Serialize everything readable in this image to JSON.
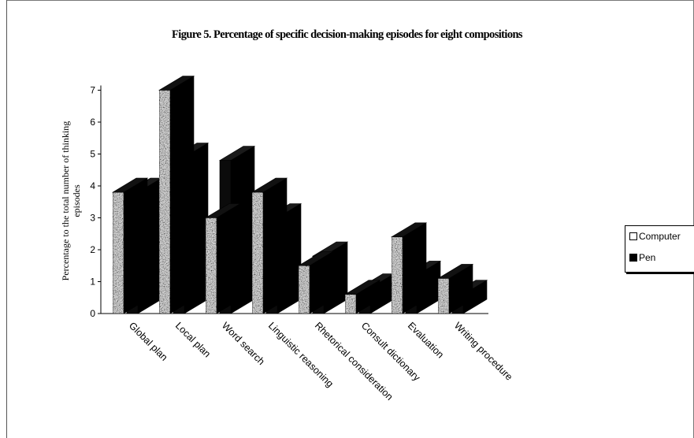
{
  "chart_data": {
    "type": "bar",
    "title": "Figure 5. Percentage of specific decision-making episodes for eight compositions",
    "ylabel_lines": [
      "Percentage to the total number of thinking",
      "episodes"
    ],
    "xlabel": "",
    "categories": [
      "Global plan",
      "Local plan",
      "Word search",
      "Linguistic reasoning",
      "Rhetorical consideration",
      "Consult dictionary",
      "Evaluation",
      "Writing procedure"
    ],
    "series": [
      {
        "name": "Computer",
        "values": [
          3.8,
          7.0,
          3.0,
          3.8,
          1.5,
          0.6,
          2.4,
          1.1
        ],
        "color": "#9a9a9a",
        "pattern": "speckled-light"
      },
      {
        "name": "Pen",
        "values": [
          3.8,
          4.9,
          4.8,
          3.0,
          1.8,
          0.8,
          1.2,
          0.6
        ],
        "color": "#000000",
        "pattern": "solid-black"
      }
    ],
    "ylim": [
      0,
      7
    ],
    "yticks": [
      0,
      1,
      2,
      3,
      4,
      5,
      6,
      7
    ],
    "three_d": true,
    "grid": false,
    "legend_position": "right"
  }
}
